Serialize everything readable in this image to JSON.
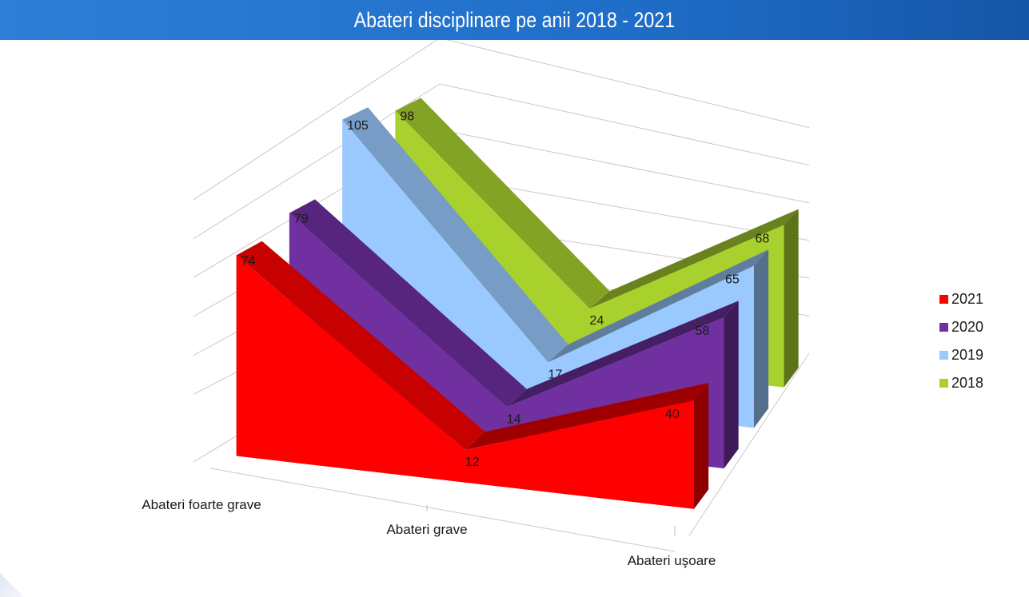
{
  "header": {
    "title": "Abateri disciplinare pe anii 2018 - 2021"
  },
  "chart_data": {
    "type": "line",
    "style": "3d-ribbon",
    "title": "Abateri disciplinare pe anii 2018 - 2021",
    "categories": [
      "Abateri foarte grave",
      "Abateri grave",
      "Abateri uşoare"
    ],
    "series": [
      {
        "name": "2021",
        "values": [
          74,
          12,
          40
        ],
        "color": "#ff0000"
      },
      {
        "name": "2020",
        "values": [
          79,
          14,
          58
        ],
        "color": "#7030a0"
      },
      {
        "name": "2019",
        "values": [
          105,
          17,
          65
        ],
        "color": "#99c9ff"
      },
      {
        "name": "2018",
        "values": [
          98,
          24,
          68
        ],
        "color": "#a9d12e"
      }
    ],
    "ylim": [
      0,
      120
    ],
    "grid": true,
    "legend_position": "right"
  }
}
